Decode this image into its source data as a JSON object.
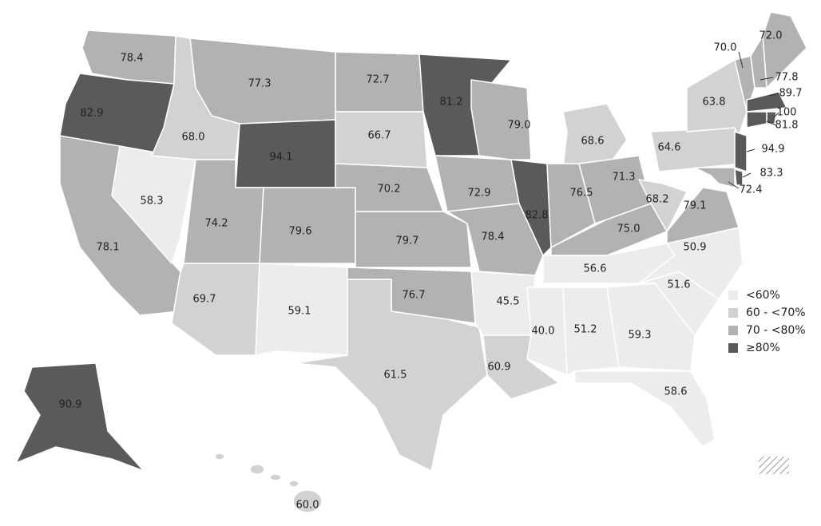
{
  "chart_data": {
    "type": "choropleth",
    "values": [
      78.4,
      82.9,
      78.1,
      58.3,
      68.0,
      77.3,
      94.1,
      74.2,
      79.6,
      69.7,
      59.1,
      72.7,
      66.7,
      70.2,
      79.7,
      76.7,
      61.5,
      81.2,
      72.9,
      78.4,
      45.5,
      60.9,
      79.0,
      82.8,
      68.6,
      76.5,
      71.3,
      75.0,
      56.6,
      40.0,
      51.2,
      59.3,
      58.6,
      51.6,
      50.9,
      79.1,
      68.2,
      64.6,
      63.8,
      72.0,
      70.0,
      77.8,
      89.7,
      100,
      81.8,
      94.9,
      83.3,
      72.4,
      90.9,
      60.0
    ],
    "value_labels": [
      "78.4",
      "82.9",
      "78.1",
      "58.3",
      "68.0",
      "77.3",
      "94.1",
      "74.2",
      "79.6",
      "69.7",
      "59.1",
      "72.7",
      "66.7",
      "70.2",
      "79.7",
      "76.7",
      "61.5",
      "81.2",
      "72.9",
      "78.4",
      "45.5",
      "60.9",
      "79.0",
      "82.8",
      "68.6",
      "76.5",
      "71.3",
      "75.0",
      "56.6",
      "40.0",
      "51.2",
      "59.3",
      "58.6",
      "51.6",
      "50.9",
      "79.1",
      "68.2",
      "64.6",
      "63.8",
      "72.0",
      "70.0",
      "77.8",
      "89.7",
      "100",
      "81.8",
      "94.9",
      "83.3",
      "72.4",
      "90.9",
      "60.0"
    ],
    "legend": {
      "labels": [
        "<60%",
        "60 - <70%",
        "70 - <80%",
        "≥80%"
      ],
      "breaks": [
        60,
        70,
        80
      ],
      "colors": [
        "#ececec",
        "#d2d2d2",
        "#b2b2b2",
        "#5a5a5a"
      ]
    }
  }
}
